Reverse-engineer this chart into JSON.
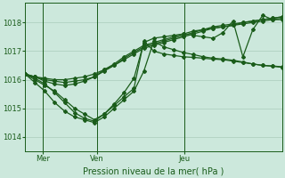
{
  "title": "Pression niveau de la mer( hPa )",
  "bg_color": "#cce8dc",
  "grid_color": "#aaccbb",
  "line_color": "#1a5c1a",
  "ylim": [
    1013.5,
    1018.7
  ],
  "yticks": [
    1014,
    1015,
    1016,
    1017,
    1018
  ],
  "day_labels": [
    "Mer",
    "Ven",
    "Jeu"
  ],
  "day_positions": [
    0.07,
    0.28,
    0.62
  ],
  "series": [
    [
      1016.2,
      1016.1,
      1016.05,
      1016.0,
      1016.0,
      1016.05,
      1016.1,
      1016.2,
      1016.35,
      1016.5,
      1016.7,
      1016.9,
      1017.1,
      1017.2,
      1017.3,
      1017.4,
      1017.5,
      1017.6,
      1017.7,
      1017.8,
      1017.85,
      1017.9,
      1018.0,
      1018.05,
      1018.1,
      1018.15,
      1018.2
    ],
    [
      1016.2,
      1016.1,
      1016.0,
      1015.95,
      1015.9,
      1015.95,
      1016.0,
      1016.1,
      1016.3,
      1016.5,
      1016.75,
      1016.95,
      1017.15,
      1017.25,
      1017.35,
      1017.45,
      1017.55,
      1017.65,
      1017.75,
      1017.85,
      1017.9,
      1017.95,
      1018.0,
      1018.05,
      1018.1,
      1018.15,
      1018.2
    ],
    [
      1016.2,
      1016.1,
      1015.95,
      1015.85,
      1015.8,
      1015.85,
      1015.95,
      1016.1,
      1016.35,
      1016.55,
      1016.8,
      1017.0,
      1017.2,
      1017.3,
      1017.4,
      1017.5,
      1017.6,
      1017.7,
      1017.75,
      1017.8,
      1017.85,
      1017.9,
      1017.95,
      1018.0,
      1018.05,
      1018.1,
      1018.15
    ],
    [
      1016.2,
      1016.0,
      1015.8,
      1015.6,
      1015.3,
      1015.0,
      1014.8,
      1014.6,
      1014.8,
      1015.1,
      1015.4,
      1015.7,
      1017.35,
      1017.0,
      1016.9,
      1016.85,
      1016.8,
      1016.78,
      1016.75,
      1016.72,
      1016.7,
      1016.65,
      1016.6,
      1016.55,
      1016.5,
      1016.48,
      1016.45
    ],
    [
      1016.2,
      1015.9,
      1015.6,
      1015.2,
      1014.9,
      1014.7,
      1014.6,
      1014.5,
      1014.7,
      1015.0,
      1015.3,
      1015.6,
      1016.3,
      1017.35,
      1017.15,
      1017.05,
      1016.95,
      1016.88,
      1016.8,
      1016.75,
      1016.72,
      1016.68,
      1016.62,
      1016.55,
      1016.5,
      1016.47,
      1016.43
    ],
    [
      1016.2,
      1016.05,
      1015.85,
      1015.55,
      1015.2,
      1014.85,
      1014.65,
      1014.55,
      1014.8,
      1015.15,
      1015.55,
      1016.05,
      1017.3,
      1017.45,
      1017.5,
      1017.55,
      1017.6,
      1017.55,
      1017.5,
      1017.45,
      1017.65,
      1018.05,
      1016.8,
      1017.75,
      1018.25,
      1018.1,
      1018.1
    ]
  ],
  "n_points": 27,
  "vline_positions": [
    0.07,
    0.28,
    0.62
  ],
  "marker": "D",
  "markersize": 2.0,
  "linewidth": 0.9
}
